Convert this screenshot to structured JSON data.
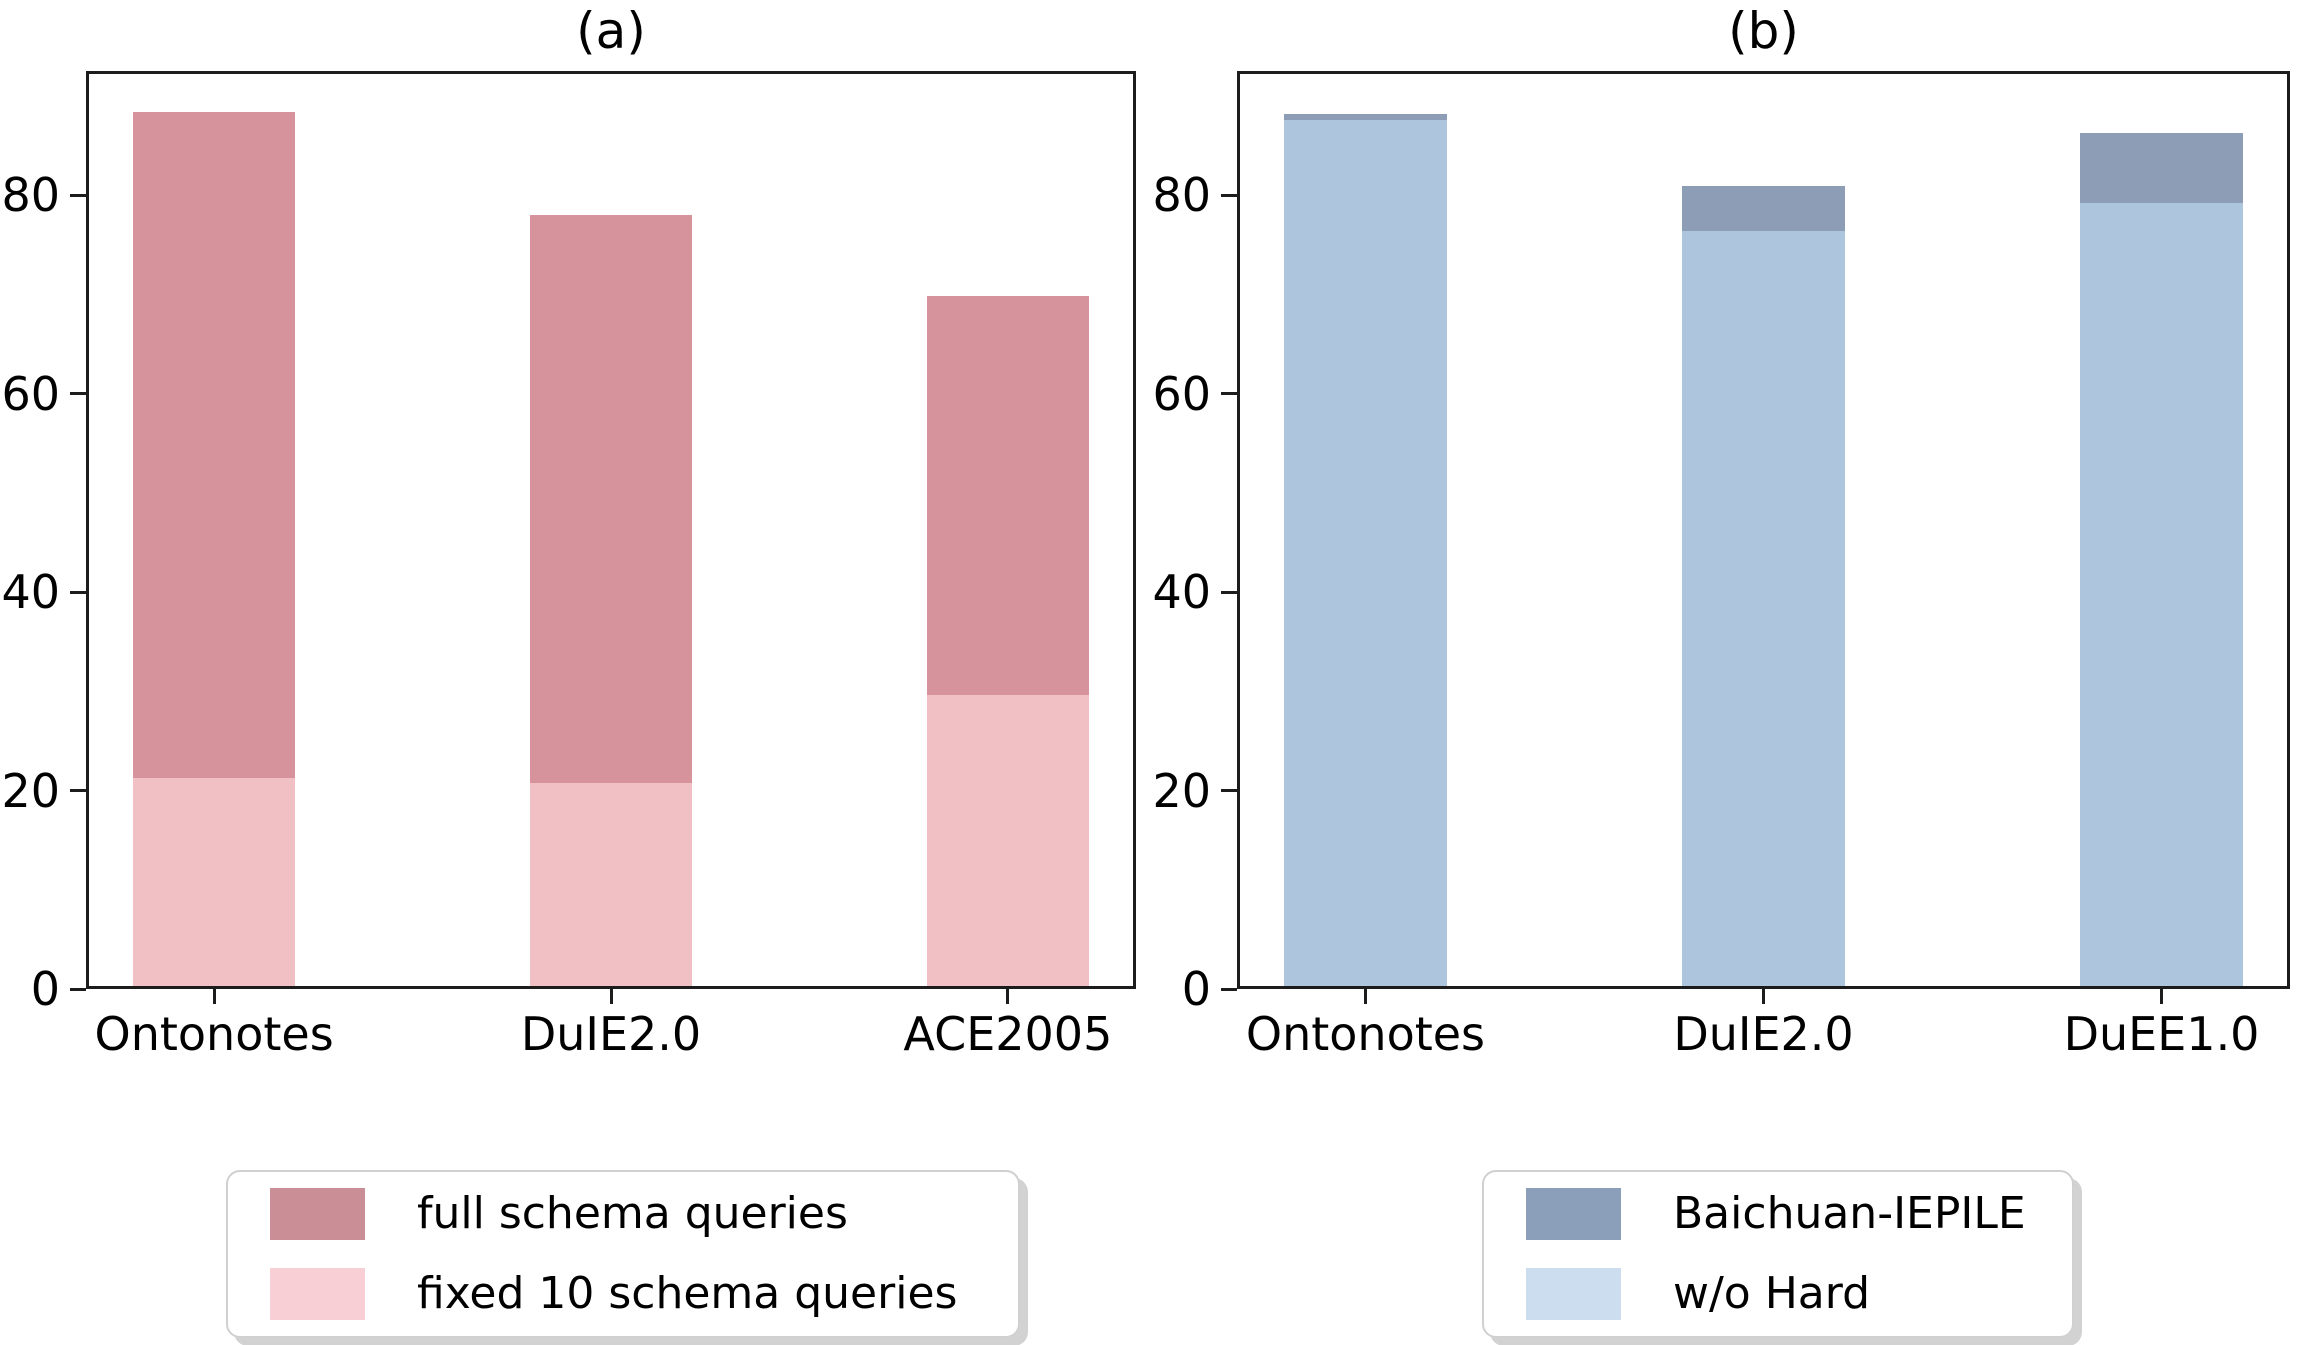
{
  "colors": {
    "background": "#ffffff",
    "spine": "#1c1c1c",
    "text": "#000000",
    "legend_border": "#d0d0d0",
    "legend_shadow": "#d2d2d2"
  },
  "chart_data": [
    {
      "type": "bar",
      "title": "(a)",
      "categories": [
        "Ontonotes",
        "DuIE2.0",
        "ACE2005"
      ],
      "series": [
        {
          "name": "full schema queries",
          "values": [
            88.4,
            78.0,
            69.8
          ],
          "bar_color": "#d6939b",
          "legend_color": "#ca8e97"
        },
        {
          "name": "fixed 10 schema queries",
          "values": [
            21.3,
            20.8,
            29.6
          ],
          "bar_color": "#f1c0c4",
          "legend_color": "#f7cfd4"
        }
      ],
      "overlaid": true,
      "xlabel": "",
      "ylabel": "",
      "ylim": [
        0,
        92.5
      ],
      "yticks": [
        0,
        20,
        40,
        60,
        80
      ],
      "grid": false,
      "legend_position": "below-center"
    },
    {
      "type": "bar",
      "title": "(b)",
      "categories": [
        "Ontonotes",
        "DuIE2.0",
        "DuEE1.0"
      ],
      "series": [
        {
          "name": "Baichuan-IEPILE",
          "values": [
            88.2,
            80.9,
            86.3
          ],
          "bar_color": "#8c9db5",
          "legend_color": "#8b9fbb"
        },
        {
          "name": "w/o Hard",
          "values": [
            87.6,
            76.4,
            79.2
          ],
          "bar_color": "#aec6dd",
          "legend_color": "#cbddee"
        }
      ],
      "overlaid": true,
      "xlabel": "",
      "ylabel": "",
      "ylim": [
        0,
        92.5
      ],
      "yticks": [
        0,
        20,
        40,
        60,
        80
      ],
      "grid": false,
      "legend_position": "below-center"
    }
  ]
}
